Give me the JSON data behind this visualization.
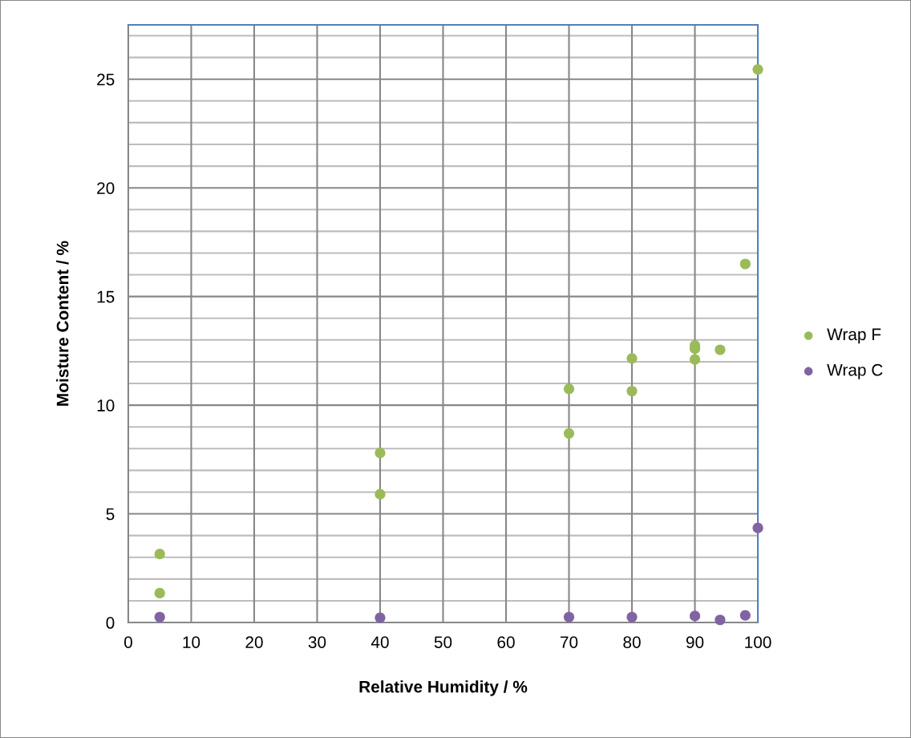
{
  "chart_data": {
    "type": "scatter",
    "xlabel": "Relative Humidity / %",
    "ylabel": "Moisture Content / %",
    "xlim": [
      0,
      100
    ],
    "xticks": [
      0,
      10,
      20,
      30,
      40,
      50,
      60,
      70,
      80,
      90,
      100
    ],
    "ylim": [
      0,
      27.5
    ],
    "yticks": [
      0,
      5,
      10,
      15,
      20,
      25
    ],
    "grid": true,
    "legend": "right",
    "marker": "circle",
    "series": [
      {
        "name": "Wrap F",
        "color": "#9bbb59",
        "x": [
          5,
          5,
          40,
          40,
          70,
          70,
          80,
          80,
          90,
          90,
          90,
          94,
          98,
          100
        ],
        "values": [
          3.15,
          1.35,
          7.8,
          5.9,
          10.75,
          8.7,
          12.15,
          10.65,
          12.75,
          12.6,
          12.1,
          12.55,
          16.5,
          25.45
        ]
      },
      {
        "name": "Wrap C",
        "color": "#8064a2",
        "x": [
          5,
          40,
          70,
          80,
          90,
          94,
          98,
          100
        ],
        "values": [
          0.25,
          0.22,
          0.25,
          0.25,
          0.3,
          0.12,
          0.33,
          4.35
        ]
      }
    ]
  }
}
